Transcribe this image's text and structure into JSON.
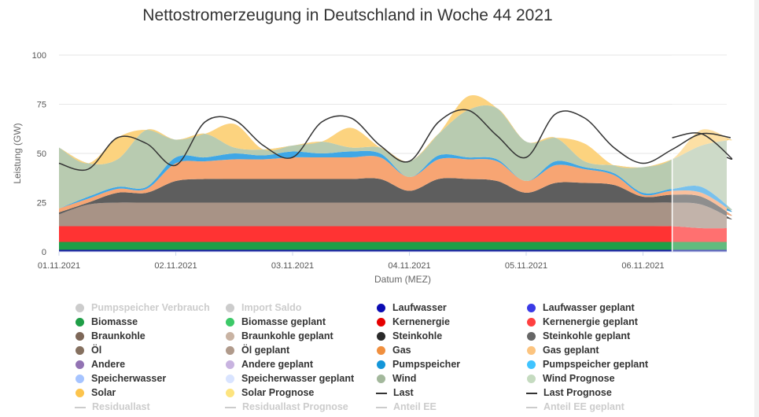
{
  "chart_data": {
    "type": "area",
    "title": "Nettostromerzeugung in Deutschland in Woche 44 2021",
    "xlabel": "Datum (MEZ)",
    "ylabel": "Leistung (GW)",
    "ylim": [
      0,
      100
    ],
    "yticks": [
      "0",
      "25",
      "50",
      "75",
      "100"
    ],
    "xticks": [
      "01.11.2021",
      "02.11.2021",
      "03.11.2021",
      "04.11.2021",
      "05.11.2021",
      "06.11.2021"
    ],
    "x_days": [
      0,
      0.25,
      0.5,
      0.75,
      1,
      1.25,
      1.5,
      1.75,
      2,
      2.25,
      2.5,
      2.75,
      3,
      3.25,
      3.5,
      3.75,
      4,
      4.25,
      4.5,
      4.75,
      5,
      5.25,
      5.5,
      5.75
    ],
    "forecast_start_day": 5.25,
    "stacked_series": [
      {
        "name": "Laufwasser",
        "color": "#1a1aa6",
        "values": [
          1,
          1,
          1,
          1,
          1,
          1,
          1,
          1,
          1,
          1,
          1,
          1,
          1,
          1,
          1,
          1,
          1,
          1,
          1,
          1,
          1,
          1,
          1,
          1
        ]
      },
      {
        "name": "Biomasse",
        "color": "#1f9e47",
        "values": [
          4,
          4,
          4,
          4,
          4,
          4,
          4,
          4,
          4,
          4,
          4,
          4,
          4,
          4,
          4,
          4,
          4,
          4,
          4,
          4,
          4,
          4,
          4,
          4
        ]
      },
      {
        "name": "Kernenergie",
        "color": "#ff3333",
        "values": [
          8,
          8,
          8,
          8,
          8,
          8,
          8,
          8,
          8,
          8,
          8,
          8,
          8,
          8,
          8,
          8,
          8,
          8,
          8,
          8,
          8,
          8,
          7,
          7
        ]
      },
      {
        "name": "Braunkohle",
        "color": "#a89386",
        "values": [
          6,
          11,
          12,
          12,
          12,
          12,
          12,
          12,
          12,
          12,
          12,
          12,
          12,
          12,
          12,
          12,
          12,
          12,
          12,
          12,
          12,
          12,
          12,
          5
        ]
      },
      {
        "name": "Steinkohle",
        "color": "#5e5e5e",
        "values": [
          1,
          1,
          5,
          5,
          11,
          12,
          12,
          12,
          12,
          12,
          12,
          12,
          6,
          12,
          12,
          11,
          5,
          10,
          10,
          9,
          3,
          4,
          4,
          2
        ]
      },
      {
        "name": "Gas",
        "color": "#f7a573",
        "values": [
          2,
          2,
          2,
          2,
          9,
          9,
          10,
          10,
          11,
          11,
          11,
          11,
          7,
          10,
          10,
          10,
          6,
          9,
          7,
          5,
          1,
          2,
          2,
          2
        ]
      },
      {
        "name": "Pumpspeicher",
        "color": "#3fa7e6",
        "values": [
          0,
          1,
          1,
          1,
          3,
          2,
          3,
          2,
          3,
          2,
          3,
          2,
          0,
          2,
          1,
          1,
          0,
          2,
          1,
          1,
          1,
          1,
          3,
          1
        ]
      },
      {
        "name": "Wind",
        "color": "#b8cbb0",
        "values": [
          31,
          17,
          14,
          29,
          9,
          12,
          3,
          3,
          3,
          6,
          2,
          3,
          8,
          11,
          24,
          26,
          20,
          12,
          3,
          4,
          13,
          15,
          21,
          35
        ]
      },
      {
        "name": "Solar",
        "color": "#fcd37f",
        "values": [
          0,
          0,
          11,
          0,
          0,
          0,
          12,
          0,
          0,
          0,
          10,
          0,
          0,
          0,
          7,
          0,
          0,
          0,
          9,
          0,
          0,
          0,
          8,
          0
        ]
      }
    ],
    "lines": [
      {
        "name": "Last",
        "color": "#333333",
        "values": [
          45,
          42,
          58,
          55,
          44,
          66,
          67,
          54,
          48,
          66,
          68,
          54,
          46,
          66,
          72,
          59,
          48,
          70,
          68,
          53,
          45,
          52,
          60,
          58
        ]
      },
      {
        "name": "Last Prognose",
        "color": "#333333",
        "values": [
          null,
          null,
          null,
          null,
          null,
          null,
          null,
          null,
          null,
          null,
          null,
          null,
          null,
          null,
          null,
          null,
          null,
          null,
          null,
          null,
          null,
          58,
          60,
          48
        ]
      }
    ]
  },
  "legend": {
    "rows": [
      [
        "Pumpspeicher Verbrauch",
        "Import Saldo",
        "Laufwasser",
        "Laufwasser geplant"
      ],
      [
        "Biomasse",
        "Biomasse geplant",
        "Kernenergie",
        "Kernenergie geplant"
      ],
      [
        "Braunkohle",
        "Braunkohle geplant",
        "Steinkohle",
        "Steinkohle geplant"
      ],
      [
        "Öl",
        "Öl geplant",
        "Gas",
        "Gas geplant"
      ],
      [
        "Andere",
        "Andere geplant",
        "Pumpspeicher",
        "Pumpspeicher geplant"
      ],
      [
        "Speicherwasser",
        "Speicherwasser geplant",
        "Wind",
        "Wind Prognose"
      ],
      [
        "Solar",
        "Solar Prognose",
        "Last",
        "Last Prognose"
      ],
      [
        "Residuallast",
        "Residuallast Prognose",
        "Anteil EE",
        "Anteil EE geplant"
      ]
    ],
    "colors": [
      [
        "#cccccc",
        "#cccccc",
        "#0b0bb3",
        "#3a3ae6"
      ],
      [
        "#1f9e47",
        "#3cc968",
        "#e60000",
        "#ff4040"
      ],
      [
        "#7d6758",
        "#c9b3a3",
        "#2a2a2a",
        "#666666"
      ],
      [
        "#85705f",
        "#b09a8b",
        "#f08f3e",
        "#fcc47f"
      ],
      [
        "#9273b3",
        "#c8b3e0",
        "#1496d9",
        "#40c4ff"
      ],
      [
        "#a6c4ff",
        "#d9e4ff",
        "#a3b89c",
        "#c5dbc0"
      ],
      [
        "#fcc44d",
        "#fde47f",
        "#333333",
        "#333333"
      ],
      [
        "#cccccc",
        "#cccccc",
        "#cccccc",
        "#cccccc"
      ]
    ],
    "types": [
      [
        "dot",
        "dot",
        "dot",
        "dot"
      ],
      [
        "dot",
        "dot",
        "dot",
        "dot"
      ],
      [
        "dot",
        "dot",
        "dot",
        "dot"
      ],
      [
        "dot",
        "dot",
        "dot",
        "dot"
      ],
      [
        "dot",
        "dot",
        "dot",
        "dot"
      ],
      [
        "dot",
        "dot",
        "dot",
        "dot"
      ],
      [
        "dot",
        "dot",
        "line",
        "line"
      ],
      [
        "line",
        "line",
        "line",
        "line"
      ]
    ],
    "disabled": [
      [
        true,
        true,
        false,
        false
      ],
      [
        false,
        false,
        false,
        false
      ],
      [
        false,
        false,
        false,
        false
      ],
      [
        false,
        false,
        false,
        false
      ],
      [
        false,
        false,
        false,
        false
      ],
      [
        false,
        false,
        false,
        false
      ],
      [
        false,
        false,
        false,
        false
      ],
      [
        true,
        true,
        true,
        true
      ]
    ]
  }
}
